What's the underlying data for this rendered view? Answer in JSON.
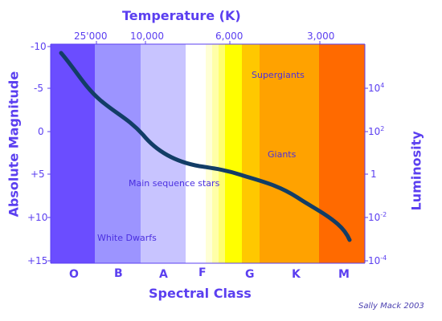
{
  "title_top": "Temperature (K)",
  "title_bottom": "Spectral Class",
  "title_left": "Absolute Magnitude",
  "title_right": "Luminosity",
  "temperature_ticks": [
    "25'000",
    "10,000",
    "6,000",
    "3,000"
  ],
  "magnitude_ticks": [
    "-10",
    "-5",
    "0",
    "+5",
    "+10",
    "+15"
  ],
  "luminosity_ticks": [
    {
      "base": "10",
      "exp": "4"
    },
    {
      "base": "10",
      "exp": "2"
    },
    {
      "base": "1",
      "exp": ""
    },
    {
      "base": "10",
      "exp": "-2"
    },
    {
      "base": "10",
      "exp": "-4"
    }
  ],
  "spectral_classes": [
    "O",
    "B",
    "A",
    "F",
    "G",
    "K",
    "M"
  ],
  "annotations": {
    "supergiants": "Supergiants",
    "giants": "Giants",
    "main_sequence": "Main sequence stars",
    "white_dwarfs": "White Dwarfs"
  },
  "credit": "Sally Mack  2003",
  "colors": {
    "O": "#6b4dff",
    "B": "#9c94ff",
    "A": "#c8c4ff",
    "F_white": "#ffffff",
    "F_yellow": "#ffff00",
    "G": "#ffc800",
    "K": "#ffa200",
    "M": "#ff6a00",
    "curve": "#123d66",
    "text": "#5b3ff0"
  }
}
